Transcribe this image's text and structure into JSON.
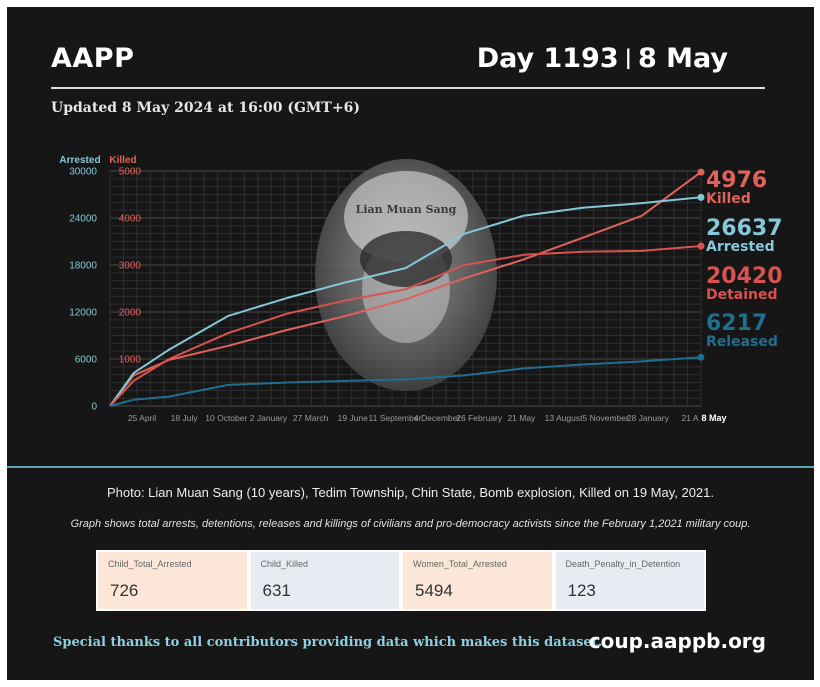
{
  "header": {
    "org": "AAPP",
    "day": "Day 1193",
    "separator": "|",
    "date": "8 May"
  },
  "updated": "Updated 8 May 2024 at 16:00 (GMT+6)",
  "chart_data": {
    "type": "line",
    "axes": {
      "left_label": "Arrested",
      "right_label": "Killed",
      "arrested_ticks": [
        "30000",
        "24000",
        "18000",
        "12000",
        "6000",
        "0"
      ],
      "killed_ticks": [
        "5000",
        "4000",
        "3000",
        "2000",
        "1000"
      ],
      "arrested_ylim": [
        0,
        30000
      ],
      "killed_ylim": [
        0,
        5000
      ]
    },
    "x_ticks": [
      "25 April",
      "18 July",
      "10 October",
      "2 January",
      "27 March",
      "19 June",
      "11 September",
      "4 December",
      "26 February",
      "21 May",
      "13 August",
      "5 November",
      "28 January",
      "21 A",
      "8 May"
    ],
    "grid": true,
    "series": [
      {
        "name": "Killed",
        "axis": "killed",
        "color": "#e0625a",
        "end_value": "4976",
        "x": [
          0,
          0.04,
          0.1,
          0.2,
          0.3,
          0.4,
          0.5,
          0.6,
          0.7,
          0.8,
          0.9,
          1.0
        ],
        "values": [
          0,
          650,
          980,
          1280,
          1620,
          1920,
          2270,
          2720,
          3120,
          3580,
          4050,
          4976
        ]
      },
      {
        "name": "Arrested",
        "axis": "arrested",
        "color": "#86c7d9",
        "end_value": "26637",
        "x": [
          0,
          0.04,
          0.1,
          0.2,
          0.3,
          0.4,
          0.5,
          0.6,
          0.7,
          0.8,
          0.9,
          1.0
        ],
        "values": [
          0,
          4200,
          7200,
          11500,
          13800,
          15800,
          17600,
          22000,
          24300,
          25300,
          25900,
          26637
        ]
      },
      {
        "name": "Detained",
        "axis": "arrested",
        "color": "#d8534e",
        "end_value": "20420",
        "x": [
          0,
          0.04,
          0.1,
          0.2,
          0.3,
          0.4,
          0.5,
          0.6,
          0.7,
          0.8,
          0.9,
          1.0
        ],
        "values": [
          0,
          3200,
          6000,
          9300,
          11800,
          13500,
          14900,
          18000,
          19300,
          19700,
          19800,
          20420
        ]
      },
      {
        "name": "Released",
        "axis": "arrested",
        "color": "#1f6f8e",
        "end_value": "6217",
        "x": [
          0,
          0.04,
          0.1,
          0.2,
          0.3,
          0.4,
          0.5,
          0.6,
          0.7,
          0.8,
          0.9,
          1.0
        ],
        "values": [
          0,
          800,
          1200,
          2700,
          3000,
          3200,
          3400,
          3900,
          4800,
          5300,
          5700,
          6217
        ]
      }
    ]
  },
  "photo": {
    "inscription": "Lian Muan Sang"
  },
  "caption": "Photo: Lian Muan Sang (10 years), Tedim Township, Chin State, Bomb explosion, Killed on 19 May, 2021.",
  "note": "Graph shows total arrests, detentions, releases and killings of civilians and pro-democracy activists since the February 1,2021 military coup.",
  "stats": [
    {
      "label": "Child_Total_Arrested",
      "value": "726",
      "bg": "#fbe6d7"
    },
    {
      "label": "Child_Killed",
      "value": "631",
      "bg": "#e8ebf1"
    },
    {
      "label": "Women_Total_Arrested",
      "value": "5494",
      "bg": "#fbe6d7"
    },
    {
      "label": "Death_Penalty_in_Detention",
      "value": "123",
      "bg": "#e8ebf1"
    }
  ],
  "footer": {
    "thanks": "Special thanks to all contributors providing data which makes this dataset.",
    "url": "coup.aappb.org"
  }
}
